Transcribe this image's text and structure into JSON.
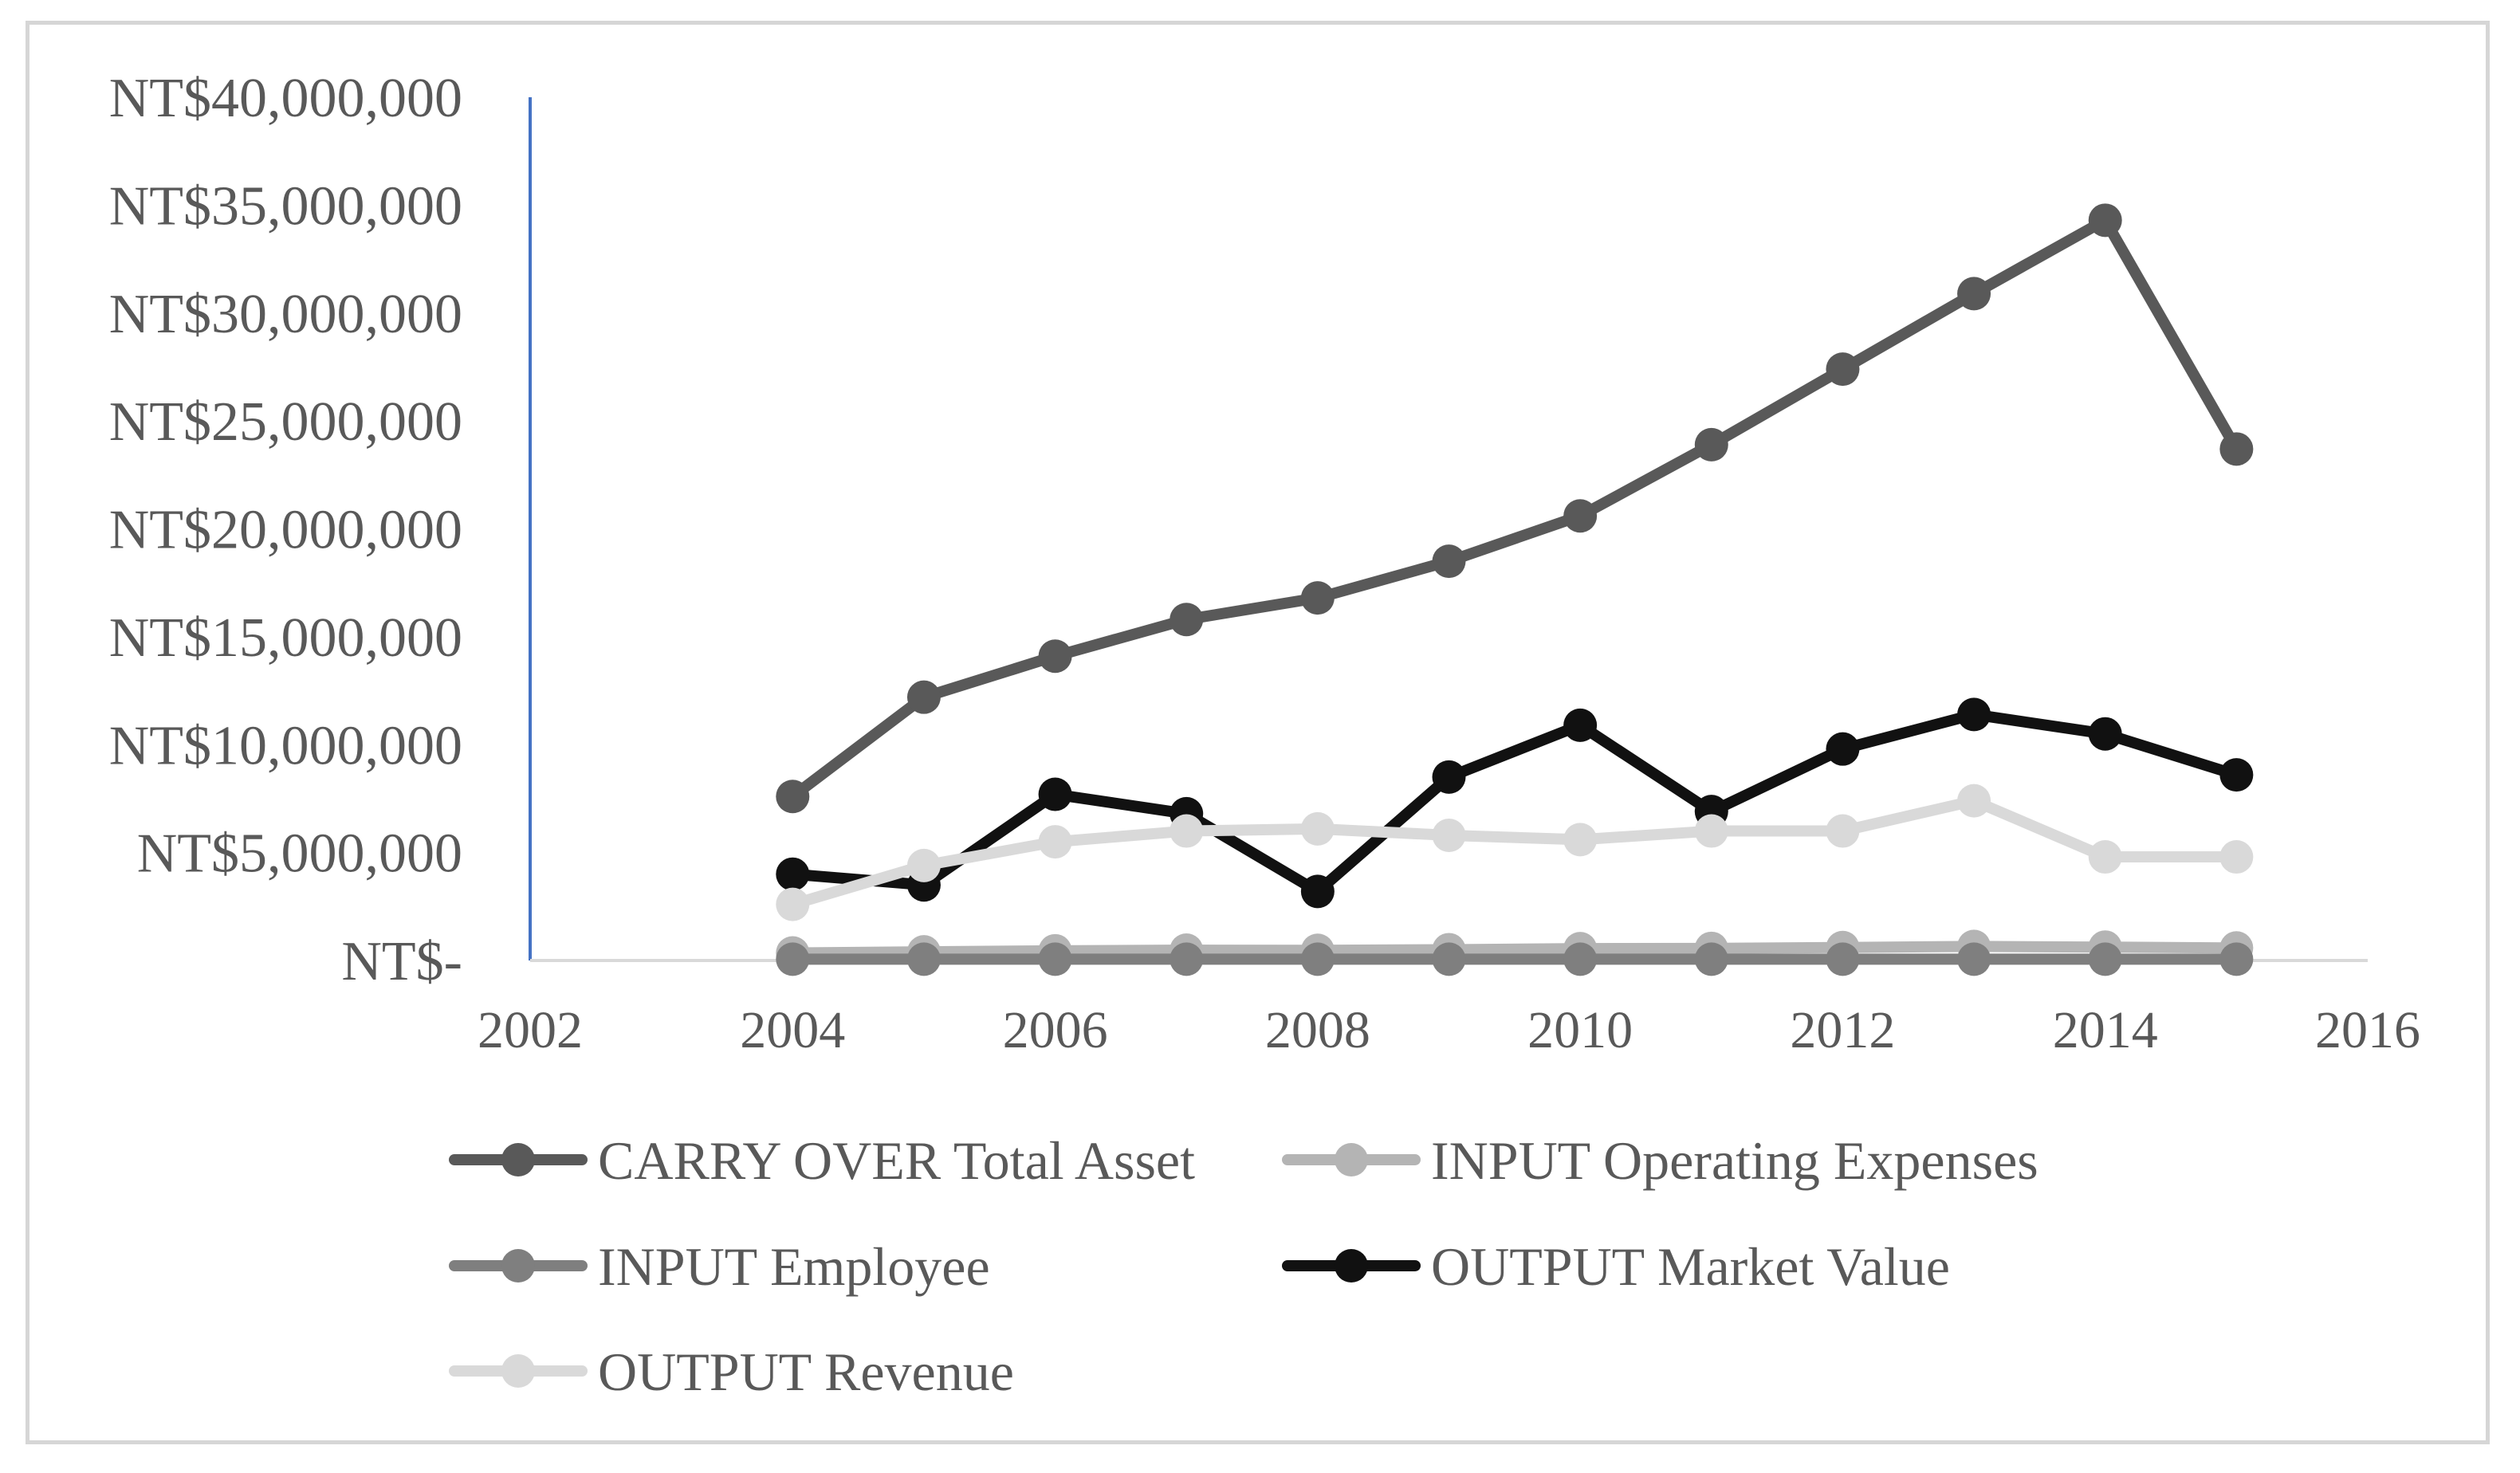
{
  "chart_data": {
    "type": "line",
    "title": "",
    "xlabel": "",
    "ylabel": "",
    "xlim": [
      2002,
      2016
    ],
    "ylim": [
      0,
      40000000
    ],
    "xticks": [
      "2002",
      "2004",
      "2006",
      "2008",
      "2010",
      "2012",
      "2014",
      "2016"
    ],
    "yticks": [
      "NT$-",
      "NT$5,000,000",
      "NT$10,000,000",
      "NT$15,000,000",
      "NT$20,000,000",
      "NT$25,000,000",
      "NT$30,000,000",
      "NT$35,000,000",
      "NT$40,000,000"
    ],
    "grid": false,
    "legend_position": "bottom",
    "x": [
      2004,
      2005,
      2006,
      2007,
      2008,
      2009,
      2010,
      2011,
      2012,
      2013,
      2014,
      2015
    ],
    "series": [
      {
        "name": "CARRY OVER Total Asset",
        "color": "#595959",
        "values": [
          7600000,
          12200000,
          14100000,
          15800000,
          16800000,
          18500000,
          20600000,
          23900000,
          27400000,
          30900000,
          34300000,
          23700000
        ]
      },
      {
        "name": "INPUT Operating Expenses",
        "color": "#b4b4b4",
        "values": [
          350000,
          400000,
          450000,
          480000,
          470000,
          500000,
          550000,
          560000,
          600000,
          650000,
          620000,
          580000
        ]
      },
      {
        "name": "INPUT Employee",
        "color": "#7f7f7f",
        "values": [
          60000,
          60000,
          60000,
          60000,
          60000,
          60000,
          60000,
          60000,
          60000,
          60000,
          60000,
          60000
        ]
      },
      {
        "name": "OUTPUT Market Value",
        "color": "#111111",
        "values": [
          4000000,
          3500000,
          7700000,
          6800000,
          3200000,
          8500000,
          10900000,
          6900000,
          9800000,
          11400000,
          10500000,
          8600000
        ]
      },
      {
        "name": "OUTPUT Revenue",
        "color": "#d9d9d9",
        "values": [
          2600000,
          4400000,
          5500000,
          6000000,
          6100000,
          5800000,
          5600000,
          6000000,
          6000000,
          7400000,
          4800000,
          4800000
        ]
      }
    ]
  }
}
